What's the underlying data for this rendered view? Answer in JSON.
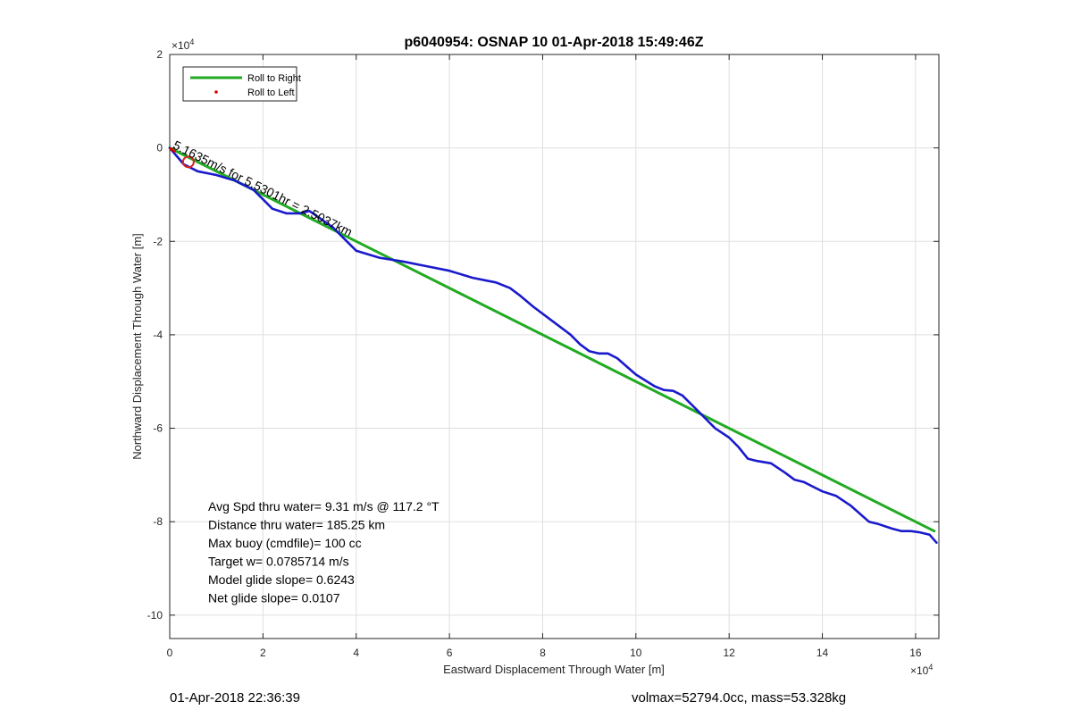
{
  "chart_data": {
    "type": "line",
    "title": "p6040954: OSNAP 10 01-Apr-2018 15:49:46Z",
    "xlabel": "Eastward Displacement Through Water [m]",
    "ylabel": "Northward Displacement Through Water [m]",
    "xlim": [
      0,
      165000
    ],
    "ylim": [
      -105000,
      20000
    ],
    "x_exponent_label": "×10^4",
    "y_exponent_label": "×10^4",
    "x_ticks": [
      0,
      20000,
      40000,
      60000,
      80000,
      100000,
      120000,
      140000,
      160000
    ],
    "x_tick_labels": [
      "0",
      "2",
      "4",
      "6",
      "8",
      "10",
      "12",
      "14",
      "16"
    ],
    "y_ticks": [
      -100000,
      -80000,
      -60000,
      -40000,
      -20000,
      0,
      20000
    ],
    "y_tick_labels": [
      "-10",
      "-8",
      "-6",
      "-4",
      "-2",
      "0",
      "2"
    ],
    "grid": true,
    "legend_position": "top-left",
    "legend": [
      {
        "label": "Roll to Right",
        "color": "#22aa22",
        "style": "line"
      },
      {
        "label": "Roll to Left",
        "color": "#dd0000",
        "style": "dot"
      }
    ],
    "series": [
      {
        "name": "Roll to Right",
        "color": "#22aa22",
        "x": [
          0,
          164000
        ],
        "y": [
          0,
          -82000
        ]
      },
      {
        "color": "#1a1acc",
        "x": [
          0,
          3000,
          6000,
          10000,
          14000,
          18000,
          20000,
          22000,
          25000,
          28000,
          30000,
          35000,
          40000,
          45000,
          50000,
          55000,
          60000,
          65000,
          70000,
          73000,
          75000,
          78000,
          82000,
          86000,
          88000,
          90000,
          92000,
          94000,
          96000,
          100000,
          104000,
          106000,
          108000,
          110000,
          113000,
          117000,
          120000,
          122000,
          124000,
          126000,
          129000,
          132000,
          134000,
          136000,
          138000,
          140000,
          143000,
          146000,
          150000,
          152000,
          155000,
          157000,
          159000,
          161000,
          163000,
          164500
        ],
        "y": [
          0,
          -3500,
          -5000,
          -5800,
          -7000,
          -9000,
          -11000,
          -13000,
          -14000,
          -14000,
          -13500,
          -17000,
          -22000,
          -23500,
          -24300,
          -25300,
          -26300,
          -27800,
          -28800,
          -30000,
          -31500,
          -34000,
          -37000,
          -40000,
          -42000,
          -43500,
          -44000,
          -44000,
          -45000,
          -48500,
          -51000,
          -51800,
          -52000,
          -53000,
          -56000,
          -60000,
          -62000,
          -64000,
          -66500,
          -67000,
          -67500,
          -69500,
          -71000,
          -71500,
          -72500,
          -73500,
          -74500,
          -76500,
          -80000,
          -80500,
          -81500,
          -82000,
          -82000,
          -82300,
          -82800,
          -84500
        ]
      }
    ],
    "roll_to_left_points": [
      {
        "x": 200,
        "y": -200
      },
      {
        "x": 500,
        "y": -400
      },
      {
        "x": 1000,
        "y": -700
      }
    ],
    "start_marker": {
      "x": 4000,
      "y": -3000,
      "color": "#dd2222"
    },
    "current_annotation": {
      "text": "5.1635m/s for 5.5301hr = 2.5037km",
      "x": 500,
      "y": 0,
      "rotation_deg": 26.6
    },
    "stats_lines": [
      "Avg Spd thru water=  9.31 m/s @ 117.2 °T",
      "Distance thru water= 185.25 km",
      "Max buoy (cmdfile)= 100 cc",
      "Target w= 0.0785714 m/s",
      "Model glide slope= 0.6243",
      "Net glide slope= 0.0107"
    ]
  },
  "footer": {
    "timestamp": "01-Apr-2018 22:36:39",
    "vol_mass": "volmax=52794.0cc, mass=53.328kg"
  }
}
